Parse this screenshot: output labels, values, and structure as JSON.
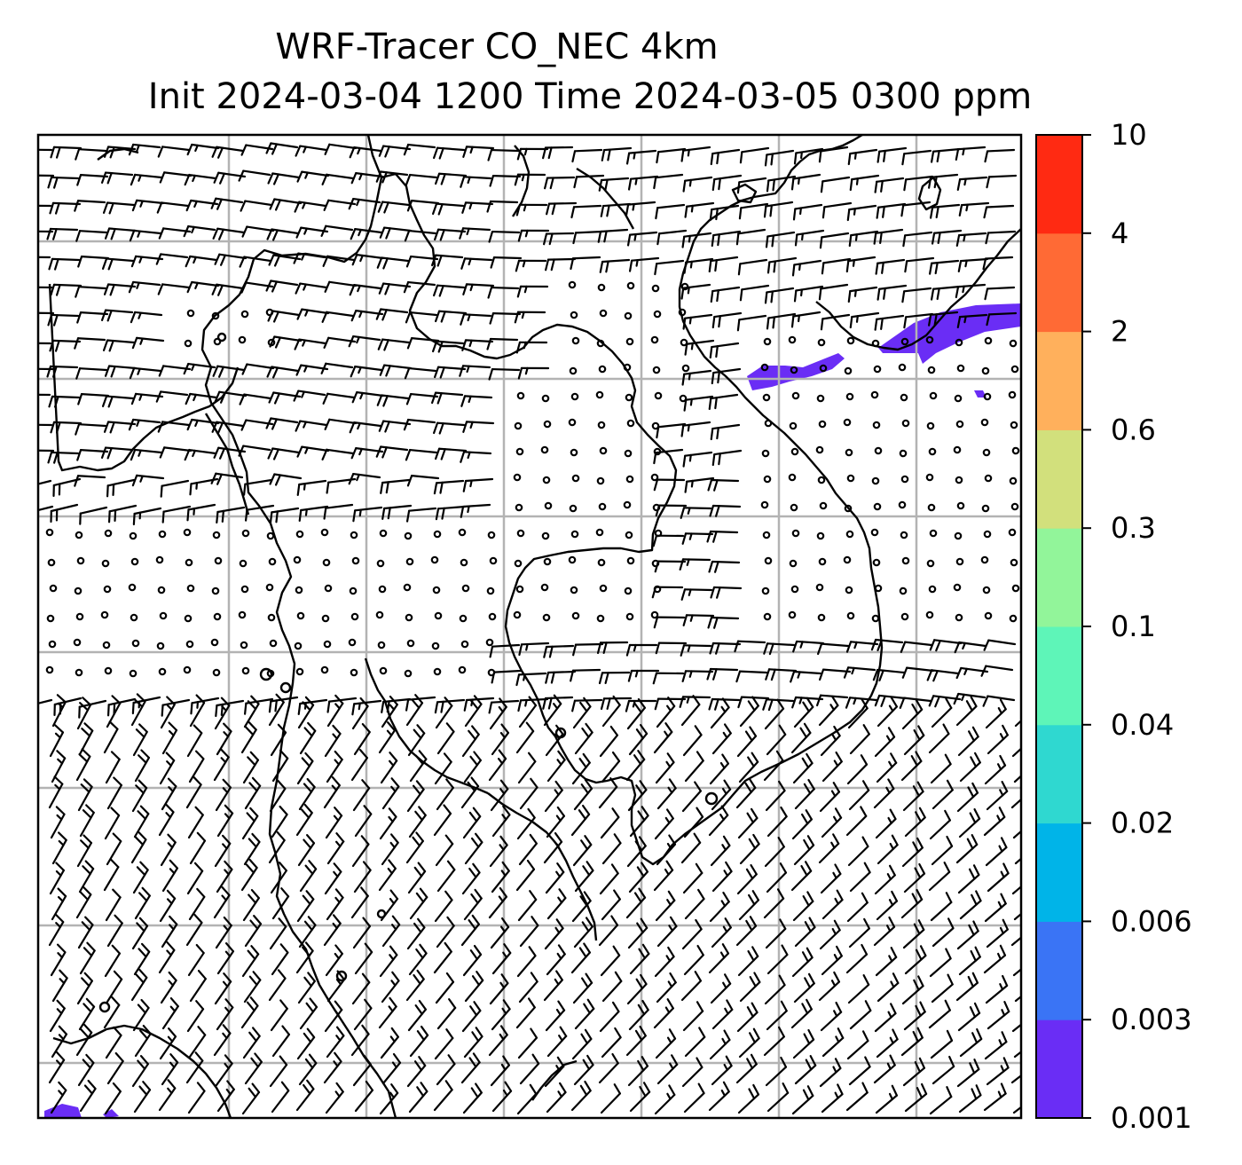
{
  "title_line1": "WRF-Tracer CO_NEC 4km",
  "title_line2": "Init 2024-03-04 1200 Time 2024-03-05 0300 ppm",
  "colorbar": {
    "levels": [
      "0.001",
      "0.003",
      "0.006",
      "0.02",
      "0.04",
      "0.1",
      "0.3",
      "0.6",
      "2",
      "4",
      "10"
    ],
    "colors": [
      "#6a2df5",
      "#3a74f5",
      "#00b4e8",
      "#2fd8d0",
      "#5ef5b8",
      "#92f59a",
      "#d2e07c",
      "#ffb05c",
      "#ff6a35",
      "#ff2a12"
    ]
  },
  "map_layers": {
    "wind_barbs": "black",
    "coastlines": "black",
    "gridlines": "#b3b3b3",
    "tracer_shading": "#6a2df5"
  }
}
